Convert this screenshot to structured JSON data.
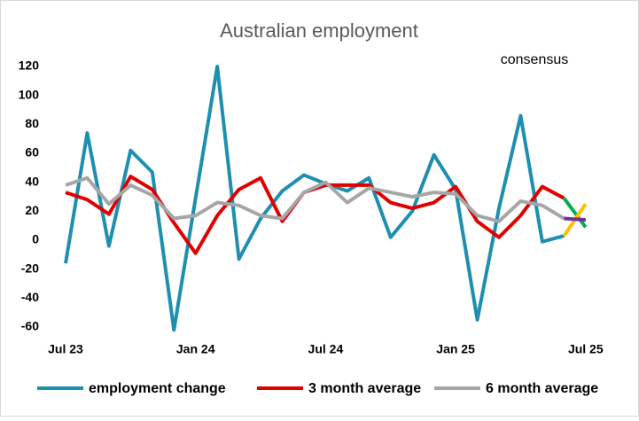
{
  "chart_data": {
    "type": "line",
    "title": "Australian employment",
    "annotation": "consensus",
    "categories": [
      "Jul 23",
      null,
      null,
      null,
      null,
      null,
      "Jan 24",
      null,
      null,
      null,
      null,
      null,
      "Jul 24",
      null,
      null,
      null,
      null,
      null,
      "Jan 25",
      null,
      null,
      null,
      null,
      null,
      "Jul 25"
    ],
    "series": [
      {
        "name": "employment change",
        "color": "#1f8fb0",
        "values": [
          -16,
          74,
          -4,
          62,
          47,
          -62,
          29,
          120,
          -13,
          15,
          34,
          45,
          39,
          34,
          43,
          2,
          20,
          59,
          35,
          -55,
          22,
          86,
          -1,
          3,
          null
        ]
      },
      {
        "name": "3 month average",
        "color": "#e00000",
        "values": [
          33,
          28,
          18,
          44,
          35,
          12,
          -9,
          17,
          35,
          43,
          13,
          33,
          38,
          38,
          38,
          26,
          22,
          26,
          37,
          13,
          2,
          17,
          37,
          29,
          null
        ]
      },
      {
        "name": "6 month average",
        "color": "#a6a6a6",
        "values": [
          38,
          43,
          25,
          38,
          31,
          15,
          17,
          26,
          24,
          17,
          15,
          33,
          40,
          26,
          36,
          33,
          30,
          33,
          32,
          17,
          13,
          27,
          24,
          15,
          null
        ]
      },
      {
        "color": "#00b050",
        "values": [
          null,
          null,
          null,
          null,
          null,
          null,
          null,
          null,
          null,
          null,
          null,
          null,
          null,
          null,
          null,
          null,
          null,
          null,
          null,
          null,
          null,
          null,
          null,
          29,
          9
        ]
      },
      {
        "color": "#ffc000",
        "values": [
          null,
          null,
          null,
          null,
          null,
          null,
          null,
          null,
          null,
          null,
          null,
          null,
          null,
          null,
          null,
          null,
          null,
          null,
          null,
          null,
          null,
          null,
          null,
          3,
          25
        ]
      },
      {
        "color": "#7030a0",
        "values": [
          null,
          null,
          null,
          null,
          null,
          null,
          null,
          null,
          null,
          null,
          null,
          null,
          null,
          null,
          null,
          null,
          null,
          null,
          null,
          null,
          null,
          null,
          null,
          15,
          14
        ]
      }
    ],
    "ylim": [
      -60,
      120
    ],
    "yticks": [
      -60,
      -40,
      -20,
      0,
      20,
      40,
      60,
      80,
      100,
      120
    ],
    "grid": false
  }
}
